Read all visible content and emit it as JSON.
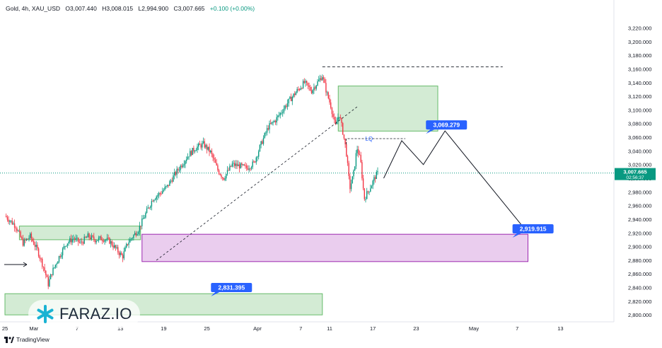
{
  "header": {
    "symbol": "Gold, 4h, XAU_USD",
    "open": "O3,007.440",
    "high": "H3,008.015",
    "low": "L2,994.900",
    "close": "C3,007.665",
    "change": "+0.100 (+0.00%)"
  },
  "footer": {
    "brand": "TradingView"
  },
  "watermark": {
    "text": "FARAZ.IO"
  },
  "price_label": {
    "value": "3,007.665",
    "countdown": "02:56:37"
  },
  "colors": {
    "up": "#089981",
    "down": "#f23645",
    "zone_green": "#c8e6c9",
    "zone_green_border": "#66bb6a",
    "zone_purple": "#e8c8ec",
    "zone_purple_border": "#9c27b0",
    "callout": "#2962ff",
    "lq": "#2962ff"
  },
  "chart_data": {
    "type": "candlestick",
    "ylim": [
      2795,
      3235
    ],
    "y_ticks": [
      "3,220.000",
      "3,200.000",
      "3,180.000",
      "3,160.000",
      "3,140.000",
      "3,120.000",
      "3,100.000",
      "3,080.000",
      "3,060.000",
      "3,040.000",
      "3,020.000",
      "3,000.000",
      "2,980.000",
      "2,960.000",
      "2,940.000",
      "2,920.000",
      "2,900.000",
      "2,880.000",
      "2,860.000",
      "2,840.000",
      "2,820.000",
      "2,800.000"
    ],
    "y_tick_values": [
      3220,
      3200,
      3180,
      3160,
      3140,
      3120,
      3100,
      3080,
      3060,
      3040,
      3020,
      3000,
      2980,
      2960,
      2940,
      2920,
      2900,
      2880,
      2860,
      2840,
      2820,
      2800
    ],
    "x_ticks": [
      {
        "label": "25",
        "day": 0
      },
      {
        "label": "Mar",
        "day": 4
      },
      {
        "label": "7",
        "day": 10
      },
      {
        "label": "13",
        "day": 16
      },
      {
        "label": "19",
        "day": 22
      },
      {
        "label": "25",
        "day": 28
      },
      {
        "label": "Apr",
        "day": 35
      },
      {
        "label": "7",
        "day": 41
      },
      {
        "label": "11",
        "day": 45
      },
      {
        "label": "17",
        "day": 51
      },
      {
        "label": "23",
        "day": 57
      },
      {
        "label": "May",
        "day": 65
      },
      {
        "label": "7",
        "day": 71
      },
      {
        "label": "13",
        "day": 77
      }
    ],
    "current_price": 3007.665,
    "close_path": [
      [
        0,
        2945
      ],
      [
        1.5,
        2930
      ],
      [
        2.5,
        2905
      ],
      [
        3.5,
        2915
      ],
      [
        4.5,
        2895
      ],
      [
        5.5,
        2865
      ],
      [
        6,
        2845
      ],
      [
        6.5,
        2862
      ],
      [
        7.5,
        2885
      ],
      [
        8.5,
        2905
      ],
      [
        9.5,
        2912
      ],
      [
        10.5,
        2905
      ],
      [
        11.5,
        2915
      ],
      [
        12.5,
        2910
      ],
      [
        13.5,
        2912
      ],
      [
        14.5,
        2908
      ],
      [
        15.5,
        2895
      ],
      [
        16.3,
        2885
      ],
      [
        17,
        2905
      ],
      [
        17.5,
        2912
      ],
      [
        18.5,
        2925
      ],
      [
        19.5,
        2948
      ],
      [
        20.5,
        2970
      ],
      [
        21.5,
        2978
      ],
      [
        22.5,
        2988
      ],
      [
        23.5,
        3005
      ],
      [
        24.5,
        3020
      ],
      [
        25.5,
        3035
      ],
      [
        26.5,
        3045
      ],
      [
        27.5,
        3050
      ],
      [
        28.5,
        3038
      ],
      [
        29.5,
        3012
      ],
      [
        30.3,
        3000
      ],
      [
        31.5,
        3020
      ],
      [
        32.5,
        3018
      ],
      [
        33.5,
        3015
      ],
      [
        34.5,
        3022
      ],
      [
        35.5,
        3050
      ],
      [
        36.5,
        3075
      ],
      [
        37.5,
        3085
      ],
      [
        38.5,
        3100
      ],
      [
        39.5,
        3115
      ],
      [
        40.5,
        3128
      ],
      [
        41.5,
        3140
      ],
      [
        42.5,
        3128
      ],
      [
        43.3,
        3140
      ],
      [
        44,
        3150
      ],
      [
        44.6,
        3125
      ],
      [
        45.2,
        3105
      ],
      [
        45.8,
        3075
      ],
      [
        46.3,
        3095
      ],
      [
        46.8,
        3070
      ],
      [
        47.3,
        3040
      ],
      [
        47.8,
        2985
      ],
      [
        48.3,
        3005
      ],
      [
        48.8,
        3045
      ],
      [
        49.3,
        3025
      ],
      [
        49.8,
        2970
      ],
      [
        50.3,
        2980
      ],
      [
        50.8,
        2990
      ],
      [
        51.3,
        3002
      ],
      [
        51.7,
        3007.665
      ]
    ],
    "zones": [
      {
        "name": "supply-zone",
        "x0": 46.2,
        "x1": 60.0,
        "y0": 3069,
        "y1": 3135,
        "color": "green"
      },
      {
        "name": "demand-zone-purple",
        "x0": 19.0,
        "x1": 72.5,
        "y0": 2878,
        "y1": 2918,
        "color": "purple"
      },
      {
        "name": "zone-upper-left",
        "x0": 2.0,
        "x1": 18.8,
        "y0": 2910,
        "y1": 2930,
        "color": "green"
      },
      {
        "name": "zone-bottom",
        "x0": 0.0,
        "x1": 44.0,
        "y0": 2800,
        "y1": 2831,
        "color": "green"
      }
    ],
    "projection": [
      [
        52.5,
        3000
      ],
      [
        55,
        3055
      ],
      [
        58,
        3020
      ],
      [
        61,
        3069.279
      ],
      [
        72.5,
        2919.915
      ]
    ],
    "trendline": [
      [
        21,
        2880
      ],
      [
        49,
        3106
      ]
    ],
    "high_line": {
      "x0": 44.0,
      "x1": 69.0,
      "y": 3163
    },
    "lq": {
      "label": "LQ",
      "x0": 47.3,
      "x1": 55.5,
      "y": 3058
    },
    "callouts": [
      {
        "label": "3,069.279",
        "day": 61.2,
        "price": 3078
      },
      {
        "label": "2,919.915",
        "day": 73.2,
        "price": 2926
      },
      {
        "label": "2,831.395",
        "day": 31.4,
        "price": 2840
      }
    ]
  }
}
